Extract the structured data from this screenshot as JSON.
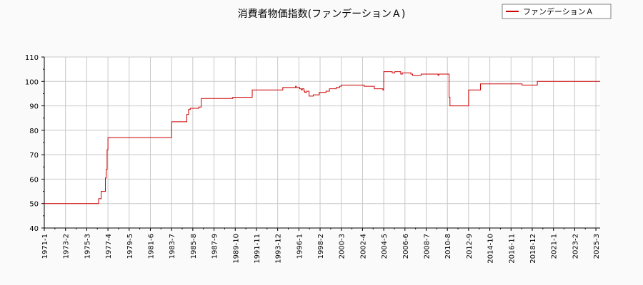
{
  "chart_data": {
    "type": "line",
    "title": "消費者物価指数(ファンデーションＡ)",
    "xlabel": "",
    "ylabel": "",
    "ylim": [
      40,
      110
    ],
    "yticks": [
      40,
      50,
      60,
      70,
      80,
      90,
      100,
      110
    ],
    "xticks": [
      "1971-1",
      "1973-2",
      "1975-3",
      "1977-4",
      "1979-5",
      "1981-6",
      "1983-7",
      "1985-8",
      "1987-9",
      "1989-10",
      "1991-11",
      "1993-12",
      "1996-1",
      "1998-2",
      "2000-3",
      "2002-4",
      "2004-5",
      "2006-6",
      "2008-7",
      "2010-8",
      "2012-9",
      "2014-10",
      "2016-11",
      "2018-12",
      "2021-1",
      "2023-2",
      "2025-3"
    ],
    "grid": true,
    "legend_position": "top-right",
    "series": [
      {
        "name": "ファンデーションＡ",
        "color": "#cc0000",
        "x": [
          "1971-1",
          "1975-3",
          "1975-10",
          "1976-1",
          "1976-5",
          "1976-8",
          "1977-1",
          "1977-2",
          "1977-3",
          "1977-4",
          "1983-6",
          "1983-7",
          "1984-11",
          "1985-1",
          "1985-3",
          "1985-5",
          "1985-6",
          "1986-3",
          "1986-6",
          "1989-4",
          "1989-7",
          "1991-3",
          "1991-6",
          "1994-2",
          "1994-6",
          "1995-4",
          "1995-7",
          "1995-9",
          "1995-10",
          "1995-12",
          "1996-2",
          "1996-4",
          "1996-5",
          "1996-7",
          "1996-8",
          "1996-10",
          "1997-1",
          "1997-6",
          "1998-1",
          "1998-5",
          "1998-9",
          "1999-1",
          "1999-5",
          "1999-9",
          "2000-1",
          "2000-3",
          "2002-3",
          "2002-6",
          "2003-2",
          "2003-6",
          "2004-4",
          "2004-5",
          "2004-6",
          "2005-1",
          "2005-3",
          "2005-6",
          "2006-1",
          "2006-3",
          "2006-6",
          "2007-1",
          "2007-3",
          "2007-6",
          "2008-1",
          "2008-6",
          "2009-6",
          "2009-9",
          "2009-10",
          "2010-3",
          "2010-9",
          "2010-10",
          "2010-11",
          "2012-8",
          "2012-9",
          "2013-9",
          "2013-11",
          "2017-9",
          "2017-12",
          "2019-4",
          "2019-6",
          "2025-8"
        ],
        "values": [
          50,
          50,
          50,
          50,
          52,
          55,
          60.5,
          64,
          72,
          77,
          77,
          83.5,
          83.5,
          86.5,
          88.5,
          89,
          89,
          89.5,
          93,
          93,
          93.5,
          93.5,
          96.5,
          96.5,
          97.5,
          97.5,
          97.5,
          98,
          97.5,
          97.5,
          97,
          96.5,
          97,
          96,
          95.5,
          96,
          94,
          94.5,
          95.5,
          95.5,
          96,
          97,
          97,
          97.5,
          98,
          98.5,
          98.5,
          98,
          98,
          97,
          96.5,
          104,
          104,
          104,
          103.5,
          104,
          103,
          103.5,
          103.5,
          103,
          102.5,
          102.5,
          103,
          103,
          103,
          102.5,
          103,
          103,
          103,
          93.5,
          90,
          90,
          96.5,
          96.5,
          99,
          99,
          98.5,
          98.5,
          100,
          100
        ]
      }
    ]
  }
}
